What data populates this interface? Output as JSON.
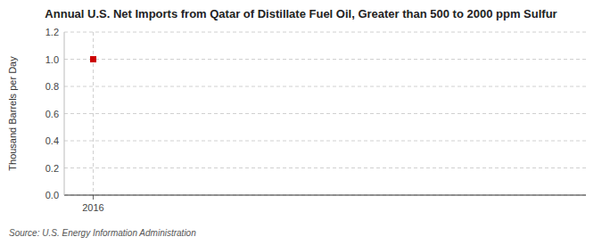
{
  "chart_data": {
    "type": "scatter",
    "title": "Annual U.S. Net Imports from Qatar of Distillate Fuel Oil, Greater than 500 to 2000 ppm Sulfur",
    "y_label": "Thousand Barrels per Day",
    "source": "Source: U.S. Energy Information Administration",
    "x": [
      2016
    ],
    "values": [
      1.0
    ],
    "color": "#cc0000",
    "marker": "square",
    "xlim": [
      2015.5,
      2024.5
    ],
    "xticks": [
      2016
    ],
    "ylim": [
      0.0,
      1.2
    ],
    "yticks": [
      {
        "value": 0.0,
        "label": "0.0"
      },
      0.2,
      0.4,
      0.6,
      0.8,
      {
        "value": 1.0,
        "label": "1.0"
      },
      1.2
    ],
    "grid": true
  }
}
